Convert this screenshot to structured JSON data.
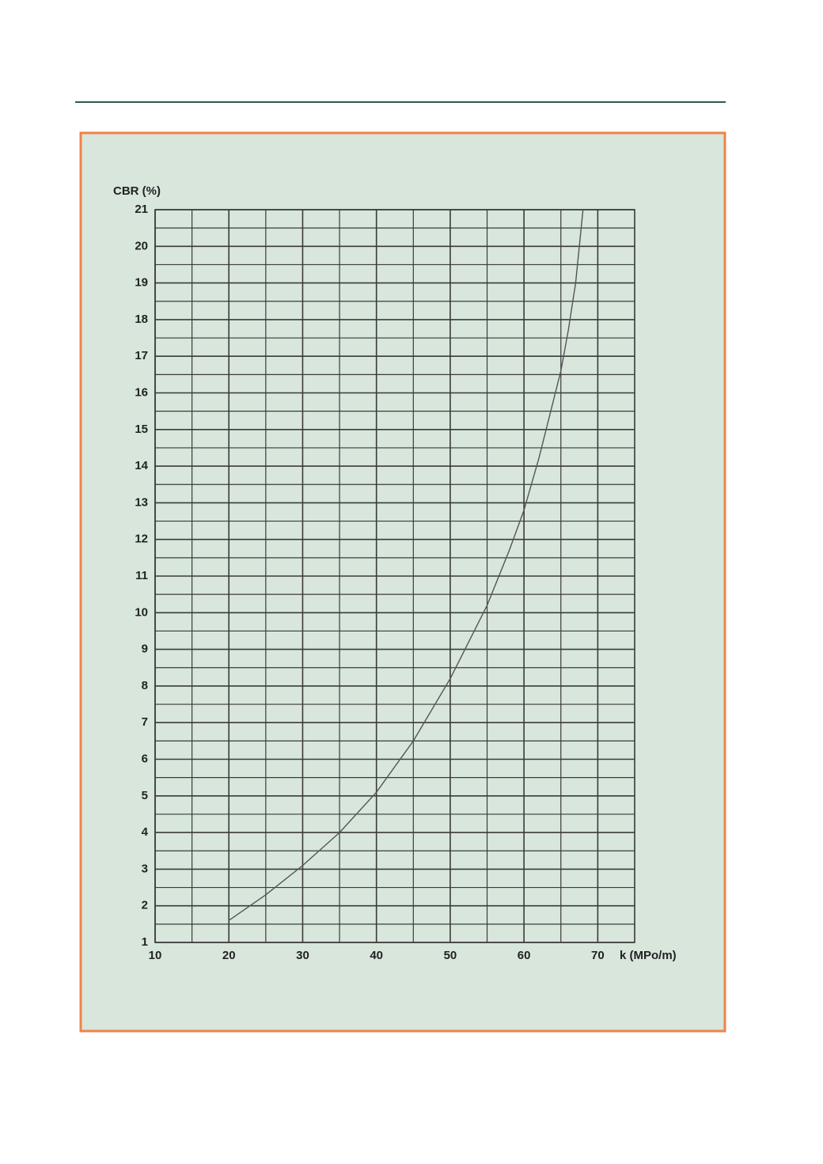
{
  "chart_data": {
    "type": "line",
    "y_label": "CBR (%)",
    "x_label": "k (MPo/m)",
    "x": [
      20,
      25,
      30,
      35,
      40,
      45,
      50,
      55,
      58,
      60,
      62,
      64,
      65,
      66,
      67,
      68
    ],
    "series": [
      {
        "name": "CBR",
        "color": "#555555",
        "values": [
          1.6,
          2.3,
          3.1,
          4.0,
          5.1,
          6.5,
          8.2,
          10.2,
          11.7,
          12.8,
          14.2,
          15.8,
          16.6,
          17.7,
          19.0,
          21
        ]
      }
    ],
    "xlim": [
      10,
      75
    ],
    "xticks": [
      10,
      20,
      30,
      40,
      50,
      60,
      70
    ],
    "ylim": [
      1,
      21
    ],
    "yticks": [
      1,
      2,
      3,
      4,
      5,
      6,
      7,
      8,
      9,
      10,
      11,
      12,
      13,
      14,
      15,
      16,
      17,
      18,
      19,
      20,
      21
    ],
    "grid": true,
    "minor_grid_divisions": 2
  }
}
